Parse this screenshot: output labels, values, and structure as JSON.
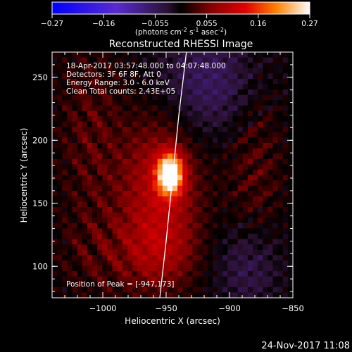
{
  "colorbar": {
    "ticks": [
      "-0.27",
      "-0.16",
      "-0.055",
      "0.055",
      "0.16",
      "0.27"
    ],
    "unit_main": "(photons cm",
    "unit_sup1": "-2",
    "unit_mid": " s",
    "unit_sup2": "-1",
    "unit_mid2": " asec",
    "unit_sup3": "-2",
    "unit_end": ")"
  },
  "chart_data": {
    "type": "heatmap",
    "title": "Reconstructed RHESSI Image",
    "xlabel": "Heliocentric X (arcsec)",
    "ylabel": "Heliocentric Y (arcsec)",
    "xlim": [
      -1040,
      -850
    ],
    "ylim": [
      75,
      270
    ],
    "xticks": [
      -1000,
      -950,
      -900,
      -850
    ],
    "xtick_labels": [
      "−1000",
      "−950",
      "−900",
      "−850"
    ],
    "yticks": [
      100,
      150,
      200,
      250
    ],
    "ytick_labels": [
      "100",
      "150",
      "200",
      "250"
    ],
    "colorbar_range": [
      -0.27,
      0.27
    ],
    "peak": {
      "x": -947,
      "y": 173
    },
    "annotations": [
      "18-Apr-2017 03:57:48.000 to 04:07:48.000",
      "Detectors: 3F 6F 8F, Att 0",
      "Energy Range: 3.0 - 6.0 keV",
      "Clean     Total counts: 2.43E+05"
    ],
    "peak_label": "Position of Peak = [-947,173]",
    "limb_line": [
      [
        -955,
        75
      ],
      [
        -950,
        120
      ],
      [
        -945,
        170
      ],
      [
        -940,
        220
      ],
      [
        -934,
        270
      ]
    ]
  },
  "footer": {
    "date": "24-Nov-2017 11:08"
  }
}
